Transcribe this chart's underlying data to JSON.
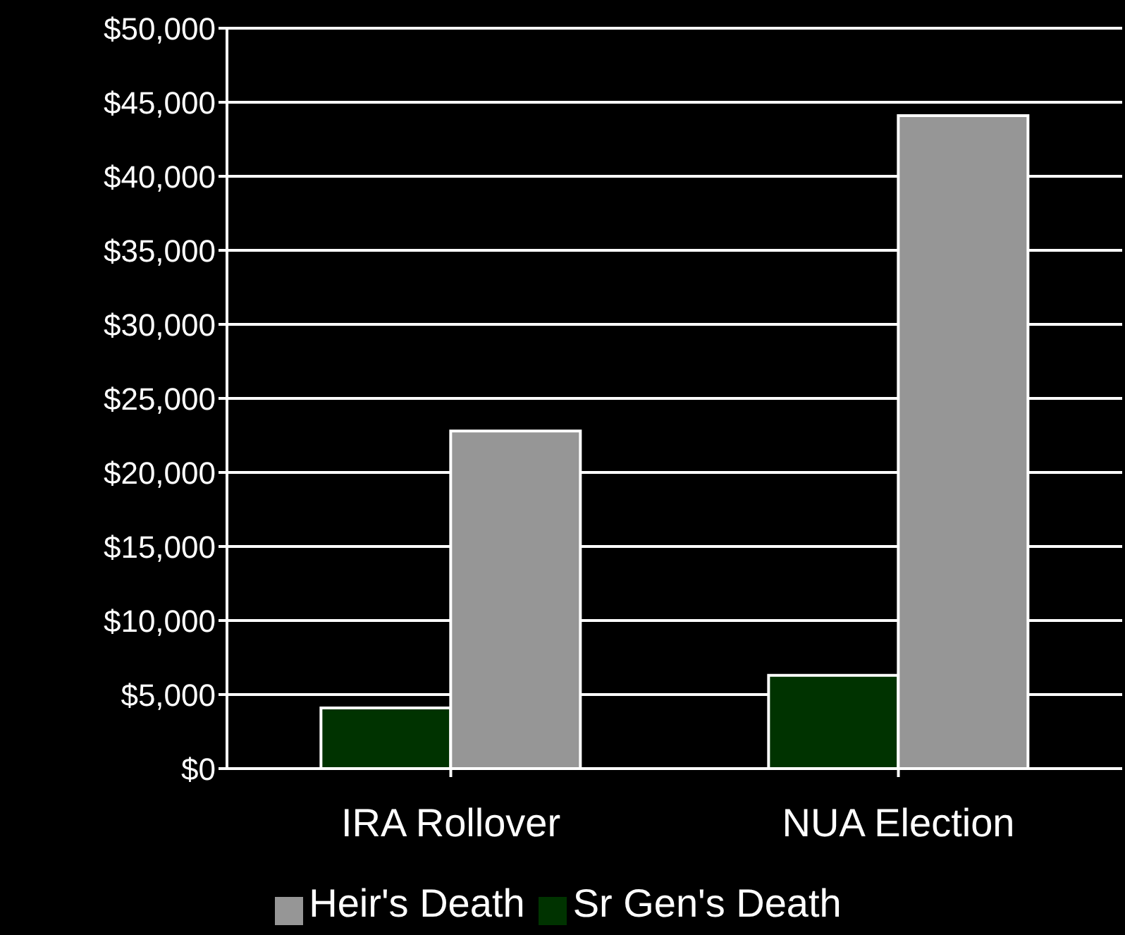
{
  "chart_data": {
    "type": "bar",
    "categories": [
      "IRA Rollover",
      "NUA Election"
    ],
    "series": [
      {
        "name": "Sr Gen's Death",
        "color": "#003300",
        "values": [
          4100,
          6300
        ]
      },
      {
        "name": "Heir's Death",
        "color": "#969696",
        "values": [
          22800,
          44100
        ]
      }
    ],
    "ylim": [
      0,
      50000
    ],
    "yticks": [
      {
        "value": 0,
        "label": "$0"
      },
      {
        "value": 5000,
        "label": "$5,000"
      },
      {
        "value": 10000,
        "label": "$10,000"
      },
      {
        "value": 15000,
        "label": "$15,000"
      },
      {
        "value": 20000,
        "label": "$20,000"
      },
      {
        "value": 25000,
        "label": "$25,000"
      },
      {
        "value": 30000,
        "label": "$30,000"
      },
      {
        "value": 35000,
        "label": "$35,000"
      },
      {
        "value": 40000,
        "label": "$40,000"
      },
      {
        "value": 45000,
        "label": "$45,000"
      },
      {
        "value": 50000,
        "label": "$50,000"
      }
    ],
    "grid": "y",
    "legend": "bottom"
  }
}
